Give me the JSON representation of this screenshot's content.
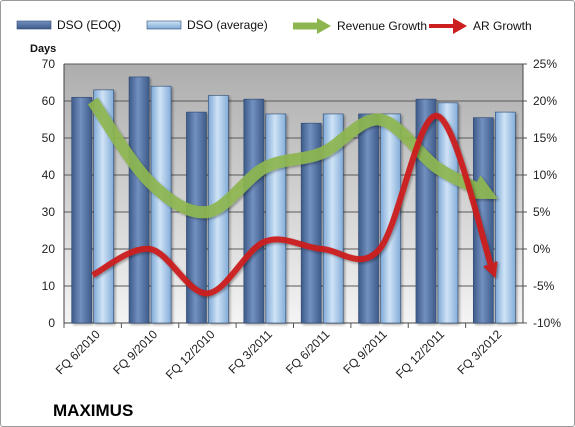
{
  "chart_data": {
    "type": "bar",
    "title": "",
    "company_label": "MAXIMUS",
    "ylabel_left": "Days",
    "ylim_left": [
      0,
      70
    ],
    "yticks_left": [
      0,
      10,
      20,
      30,
      40,
      50,
      60,
      70
    ],
    "ylim_right": [
      -10,
      25
    ],
    "yticks_right": [
      "-10%",
      "-5%",
      "0%",
      "5%",
      "10%",
      "15%",
      "20%",
      "25%"
    ],
    "categories": [
      "FQ 6/2010",
      "FQ 9/2010",
      "FQ 12/2010",
      "FQ 3/2011",
      "FQ 6/2011",
      "FQ 9/2011",
      "FQ 12/2011",
      "FQ 3/2012"
    ],
    "grid": true,
    "legend_position": "top",
    "series": [
      {
        "name": "DSO (EOQ)",
        "type": "bar",
        "axis": "left",
        "color": "#4f6fa0",
        "values": [
          61,
          66.5,
          57,
          60.5,
          54,
          56.5,
          60.5,
          55.5
        ]
      },
      {
        "name": "DSO (average)",
        "type": "bar",
        "axis": "left",
        "color": "#9cc3e6",
        "values": [
          63,
          64,
          61.5,
          56.5,
          56.5,
          56.5,
          59.5,
          57
        ]
      },
      {
        "name": "Revenue Growth",
        "type": "line",
        "axis": "right",
        "unit": "%",
        "color": "#8db650",
        "values": [
          20,
          9,
          5,
          11,
          13,
          17.5,
          11,
          7
        ]
      },
      {
        "name": "AR Growth",
        "type": "line",
        "axis": "right",
        "unit": "%",
        "color": "#cc1f1f",
        "values": [
          -3.5,
          0,
          -6,
          1,
          0,
          0,
          18,
          -3.5
        ]
      }
    ]
  }
}
